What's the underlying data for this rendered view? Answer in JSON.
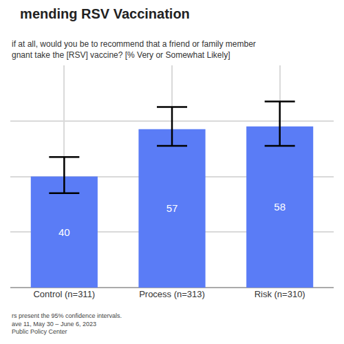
{
  "chart_data": {
    "type": "bar",
    "title": "mending RSV Vaccination",
    "subtitle": [
      "if at all, would you be to recommend that a friend or family member",
      "gnant take the [RSV] vaccine? [% Very or Somewhat Likely]"
    ],
    "notes": [
      "rs present the 95% confidence intervals.",
      "ave 11, May 30 – June 6, 2023",
      "Public Policy Center"
    ],
    "categories": [
      "Control (n=311)",
      "Process (n=313)",
      "Risk (n=310)"
    ],
    "values": [
      40,
      57,
      58
    ],
    "error_low": [
      34,
      51,
      51
    ],
    "error_high": [
      47,
      65,
      67
    ],
    "color": "#5a7cf6",
    "ylim": [
      0,
      80
    ],
    "yticks": [
      0,
      20,
      40,
      60,
      80
    ],
    "grid": true,
    "data_labels": true,
    "tick_labels": "x"
  }
}
